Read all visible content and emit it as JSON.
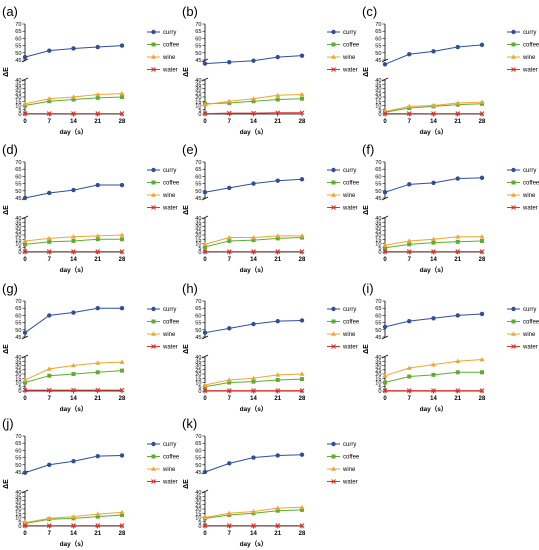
{
  "colors": {
    "curry": "#2f4f9a",
    "coffee": "#5cae32",
    "wine": "#f0a531",
    "water": "#d9342b",
    "axis": "#000000"
  },
  "chart_data": [
    {
      "panel_label": "(a)",
      "type": "line",
      "ylabel": "ΔE",
      "xlabel": "day（s）",
      "x": [
        0,
        7,
        14,
        21,
        28
      ],
      "xlim": [
        0,
        28
      ],
      "y_upper_ticks": [
        45,
        50,
        55,
        60,
        65,
        70
      ],
      "y_lower_ticks": [
        0,
        5,
        10,
        15,
        20,
        25,
        30,
        35,
        40
      ],
      "legend": "right",
      "series": [
        {
          "name": "curry",
          "values": [
            47,
            51.5,
            53,
            54,
            55
          ]
        },
        {
          "name": "coffee",
          "values": [
            10,
            15,
            17,
            19,
            20
          ]
        },
        {
          "name": "wine",
          "values": [
            12,
            18,
            20,
            23,
            24
          ]
        },
        {
          "name": "water",
          "values": [
            0.5,
            0.5,
            0.5,
            0.5,
            0.5
          ]
        }
      ]
    },
    {
      "panel_label": "(b)",
      "type": "line",
      "ylabel": "ΔE",
      "xlabel": "day（s）",
      "x": [
        0,
        7,
        14,
        21,
        28
      ],
      "xlim": [
        0,
        28
      ],
      "y_upper_ticks": [
        45,
        50,
        55,
        60,
        65,
        70
      ],
      "y_lower_ticks": [
        0,
        5,
        10,
        15,
        20,
        25,
        30,
        35,
        40
      ],
      "legend": "right",
      "series": [
        {
          "name": "curry",
          "values": [
            42.5,
            43.5,
            44.5,
            47,
            48
          ]
        },
        {
          "name": "coffee",
          "values": [
            12,
            13,
            15,
            17,
            18
          ]
        },
        {
          "name": "wine",
          "values": [
            11,
            15,
            18,
            22,
            23
          ]
        },
        {
          "name": "water",
          "values": [
            0.5,
            1,
            1,
            1.5,
            1.5
          ]
        }
      ]
    },
    {
      "panel_label": "(c)",
      "type": "line",
      "ylabel": "ΔE",
      "xlabel": "day（s）",
      "x": [
        0,
        7,
        14,
        21,
        28
      ],
      "xlim": [
        0,
        28
      ],
      "y_upper_ticks": [
        45,
        50,
        55,
        60,
        65,
        70
      ],
      "y_lower_ticks": [
        0,
        5,
        10,
        15,
        20,
        25,
        30,
        35,
        40
      ],
      "legend": "right",
      "series": [
        {
          "name": "curry",
          "values": [
            42,
            49,
            51,
            54,
            55.5
          ]
        },
        {
          "name": "coffee",
          "values": [
            2,
            7,
            9,
            11,
            12
          ]
        },
        {
          "name": "wine",
          "values": [
            3,
            9,
            10,
            13,
            14
          ]
        },
        {
          "name": "water",
          "values": [
            0.5,
            0.5,
            0.5,
            0.5,
            0.5
          ]
        }
      ]
    },
    {
      "panel_label": "(d)",
      "type": "line",
      "ylabel": "ΔE",
      "xlabel": "day（s）",
      "x": [
        0,
        7,
        14,
        21,
        28
      ],
      "xlim": [
        0,
        28
      ],
      "y_upper_ticks": [
        45,
        50,
        55,
        60,
        65,
        70
      ],
      "y_lower_ticks": [
        0,
        5,
        10,
        15,
        20,
        25,
        30,
        35,
        40
      ],
      "legend": "right",
      "series": [
        {
          "name": "curry",
          "values": [
            45,
            48.5,
            50.5,
            54,
            54
          ]
        },
        {
          "name": "coffee",
          "values": [
            9,
            12,
            13,
            15,
            15
          ]
        },
        {
          "name": "wine",
          "values": [
            13,
            16,
            18,
            19,
            20
          ]
        },
        {
          "name": "water",
          "values": [
            0.5,
            0.5,
            0.5,
            0.5,
            0.5
          ]
        }
      ]
    },
    {
      "panel_label": "(e)",
      "type": "line",
      "ylabel": "ΔE",
      "xlabel": "day（s）",
      "x": [
        0,
        7,
        14,
        21,
        28
      ],
      "xlim": [
        0,
        28
      ],
      "y_upper_ticks": [
        45,
        50,
        55,
        60,
        65,
        70
      ],
      "y_lower_ticks": [
        0,
        5,
        10,
        15,
        20,
        25,
        30,
        35,
        40
      ],
      "legend": "right",
      "series": [
        {
          "name": "curry",
          "values": [
            49,
            52,
            55,
            57,
            58
          ]
        },
        {
          "name": "coffee",
          "values": [
            6,
            13,
            14,
            16,
            17
          ]
        },
        {
          "name": "wine",
          "values": [
            9,
            17,
            17,
            19,
            19
          ]
        },
        {
          "name": "water",
          "values": [
            0.5,
            0.5,
            0.5,
            0.5,
            0.5
          ]
        }
      ]
    },
    {
      "panel_label": "(f)",
      "type": "line",
      "ylabel": "ΔE",
      "xlabel": "day（s）",
      "x": [
        0,
        7,
        14,
        21,
        28
      ],
      "xlim": [
        0,
        28
      ],
      "y_upper_ticks": [
        45,
        50,
        55,
        60,
        65,
        70
      ],
      "y_lower_ticks": [
        0,
        5,
        10,
        15,
        20,
        25,
        30,
        35,
        40
      ],
      "legend": "right",
      "series": [
        {
          "name": "curry",
          "values": [
            49,
            54.5,
            55.5,
            58.5,
            59
          ]
        },
        {
          "name": "coffee",
          "values": [
            5,
            9,
            11,
            12,
            13
          ]
        },
        {
          "name": "wine",
          "values": [
            8,
            13,
            15,
            18,
            18
          ]
        },
        {
          "name": "water",
          "values": [
            0.5,
            0.5,
            0.5,
            0.5,
            0.5
          ]
        }
      ]
    },
    {
      "panel_label": "(g)",
      "type": "line",
      "ylabel": "ΔE",
      "xlabel": "day（s）",
      "x": [
        0,
        7,
        14,
        21,
        28
      ],
      "xlim": [
        0,
        28
      ],
      "y_upper_ticks": [
        45,
        50,
        55,
        60,
        65,
        70
      ],
      "y_lower_ticks": [
        0,
        5,
        10,
        15,
        20,
        25,
        30,
        35,
        40
      ],
      "legend": "right",
      "series": [
        {
          "name": "curry",
          "values": [
            48,
            60,
            62,
            65,
            65
          ]
        },
        {
          "name": "coffee",
          "values": [
            10,
            18,
            20,
            22,
            24
          ]
        },
        {
          "name": "wine",
          "values": [
            13,
            26,
            30,
            33,
            34
          ]
        },
        {
          "name": "water",
          "values": [
            1,
            1,
            1,
            1,
            1
          ]
        }
      ]
    },
    {
      "panel_label": "(h)",
      "type": "line",
      "ylabel": "ΔE",
      "xlabel": "day（s）",
      "x": [
        0,
        7,
        14,
        21,
        28
      ],
      "xlim": [
        0,
        28
      ],
      "y_upper_ticks": [
        45,
        50,
        55,
        60,
        65,
        70
      ],
      "y_lower_ticks": [
        0,
        5,
        10,
        15,
        20,
        25,
        30,
        35,
        40
      ],
      "legend": "right",
      "series": [
        {
          "name": "curry",
          "values": [
            48,
            51,
            54,
            56,
            56.5
          ]
        },
        {
          "name": "coffee",
          "values": [
            5,
            10,
            11,
            13,
            14
          ]
        },
        {
          "name": "wine",
          "values": [
            7,
            13,
            15,
            19,
            20
          ]
        },
        {
          "name": "water",
          "values": [
            0.5,
            0.5,
            0.5,
            0.5,
            0.5
          ]
        }
      ]
    },
    {
      "panel_label": "(i)",
      "type": "line",
      "ylabel": "ΔE",
      "xlabel": "day（s）",
      "x": [
        0,
        7,
        14,
        21,
        28
      ],
      "xlim": [
        0,
        28
      ],
      "y_upper_ticks": [
        45,
        50,
        55,
        60,
        65,
        70
      ],
      "y_lower_ticks": [
        0,
        5,
        10,
        15,
        20,
        25,
        30,
        35,
        40
      ],
      "legend": "right",
      "series": [
        {
          "name": "curry",
          "values": [
            52,
            56,
            58,
            60,
            61
          ]
        },
        {
          "name": "coffee",
          "values": [
            10,
            17,
            19,
            22,
            22
          ]
        },
        {
          "name": "wine",
          "values": [
            18,
            27,
            31,
            35,
            37
          ]
        },
        {
          "name": "water",
          "values": [
            0.5,
            0.5,
            0.5,
            0.5,
            0.5
          ]
        }
      ]
    },
    {
      "panel_label": "(j)",
      "type": "line",
      "ylabel": "ΔE",
      "xlabel": "day（s）",
      "x": [
        0,
        7,
        14,
        21,
        28
      ],
      "xlim": [
        0,
        28
      ],
      "y_upper_ticks": [
        45,
        50,
        55,
        60,
        65,
        70
      ],
      "y_lower_ticks": [
        0,
        5,
        10,
        15,
        20,
        25,
        30,
        35,
        40
      ],
      "legend": "right",
      "series": [
        {
          "name": "curry",
          "values": [
            44.5,
            50,
            52.5,
            56,
            56.5
          ]
        },
        {
          "name": "coffee",
          "values": [
            3,
            8,
            9,
            11,
            13
          ]
        },
        {
          "name": "wine",
          "values": [
            4,
            9,
            11,
            14,
            16
          ]
        },
        {
          "name": "water",
          "values": [
            0.5,
            0.5,
            0.5,
            0.5,
            0.5
          ]
        }
      ]
    },
    {
      "panel_label": "(k)",
      "type": "line",
      "ylabel": "ΔE",
      "xlabel": "day（s）",
      "x": [
        0,
        7,
        14,
        21,
        28
      ],
      "xlim": [
        0,
        28
      ],
      "y_upper_ticks": [
        45,
        50,
        55,
        60,
        65,
        70
      ],
      "y_lower_ticks": [
        0,
        5,
        10,
        15,
        20,
        25,
        30,
        35,
        40
      ],
      "legend": "right",
      "series": [
        {
          "name": "curry",
          "values": [
            45,
            51,
            55,
            56.5,
            57
          ]
        },
        {
          "name": "coffee",
          "values": [
            9,
            13,
            15,
            18,
            19
          ]
        },
        {
          "name": "wine",
          "values": [
            10,
            15,
            17,
            21,
            22
          ]
        },
        {
          "name": "water",
          "values": [
            0.5,
            0.5,
            0.5,
            0.5,
            0.5
          ]
        }
      ]
    }
  ]
}
